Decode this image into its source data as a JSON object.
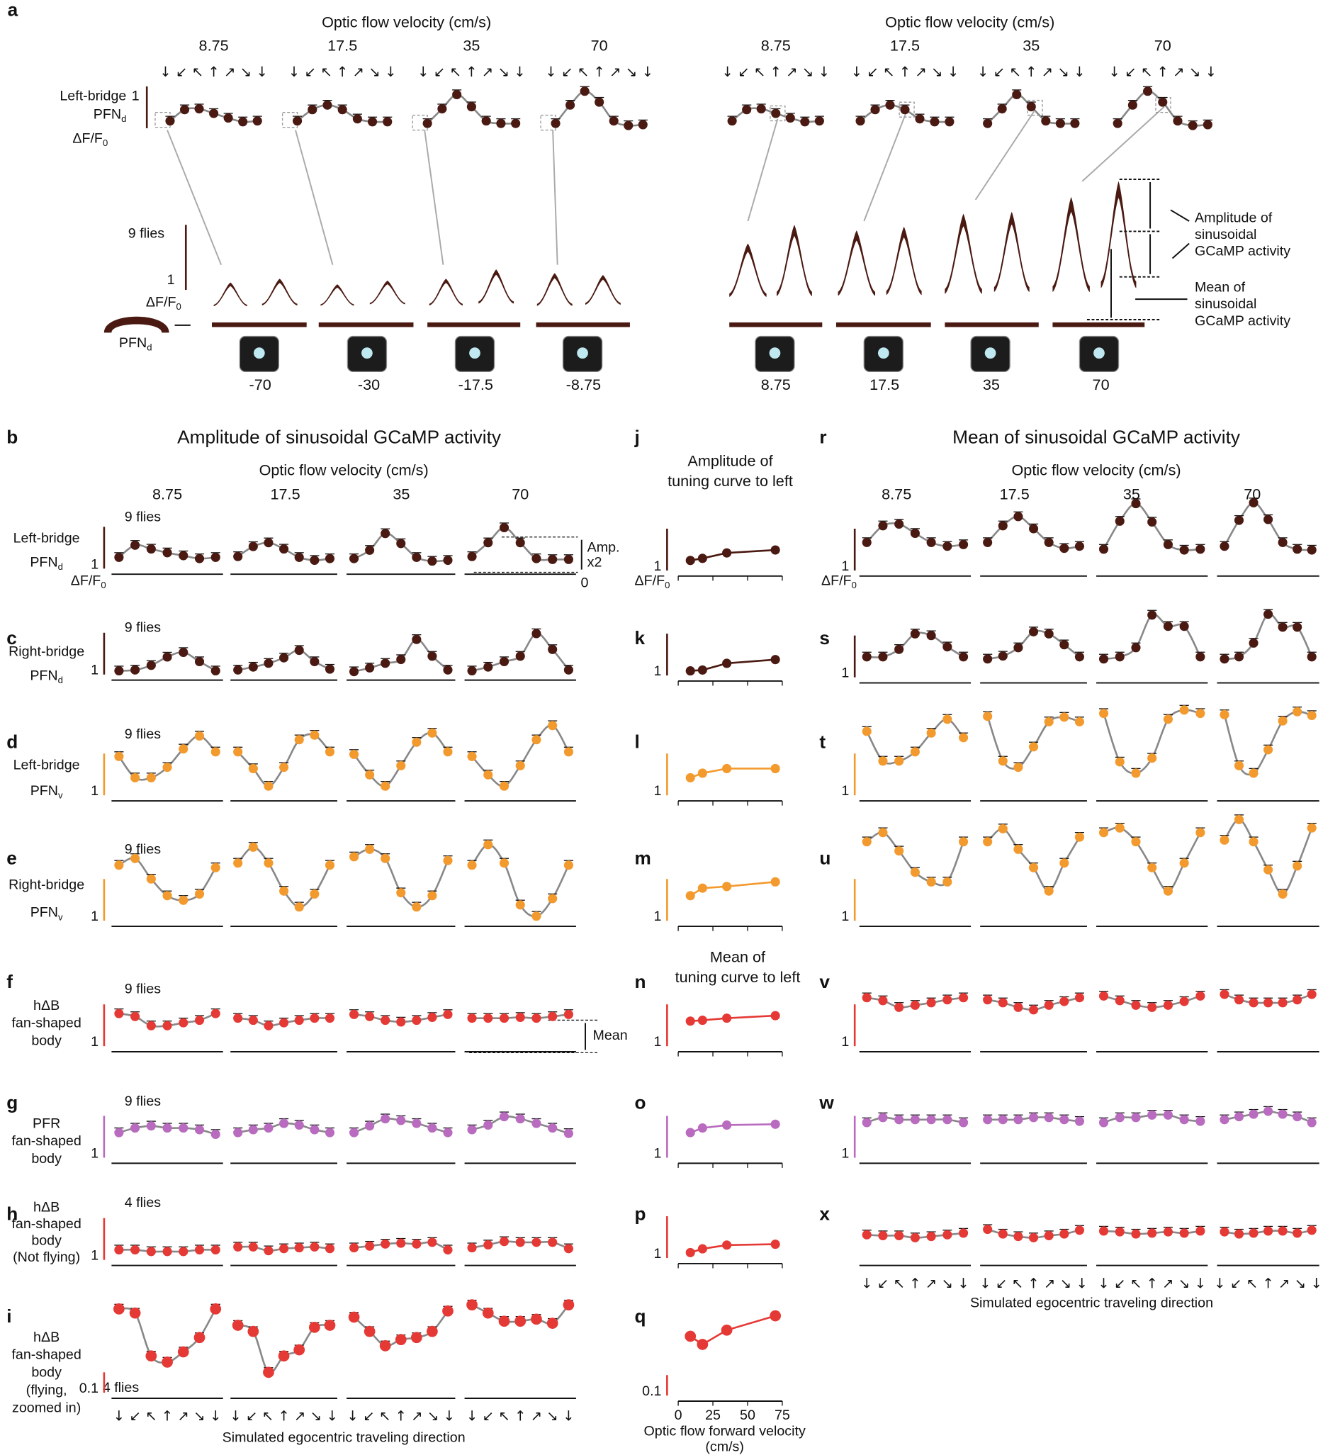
{
  "panel_a": {
    "label": "a",
    "axis_title": "Optic flow velocity (cm/s)",
    "velocities": [
      "8.75",
      "17.5",
      "35",
      "70"
    ],
    "arrows": "↓ ↙ ↖ ↑ ↗ ↘ ↓",
    "row_label": [
      {
        "text": "Left-bridge"
      },
      {
        "text": "PFN",
        "sub": "d",
        "colored": true
      }
    ],
    "scale": 1,
    "unit": {
      "text": "ΔF/F",
      "sub": "0"
    },
    "flies": "9 flies",
    "trace_scale": 1,
    "trace_unit": {
      "text": "ΔF/F",
      "sub": "0"
    },
    "cell": {
      "text": "PFN",
      "sub": "d"
    },
    "color": "#4a1a12",
    "curves": [
      [
        0.33,
        0.6,
        0.62,
        0.51,
        0.4,
        0.31,
        0.33
      ],
      [
        0.33,
        0.6,
        0.71,
        0.6,
        0.38,
        0.31,
        0.31
      ],
      [
        0.27,
        0.62,
        0.96,
        0.67,
        0.33,
        0.27,
        0.27
      ],
      [
        0.27,
        0.71,
        1.04,
        0.78,
        0.33,
        0.22,
        0.24
      ]
    ],
    "stimuli_left": [
      "-70",
      "-30",
      "-17.5",
      "-8.75"
    ],
    "stimuli_right": [
      "8.75",
      "17.5",
      "35",
      "70"
    ],
    "amplitude_note": [
      "Amplitude of",
      "sinusoidal",
      "GCaMP activity"
    ],
    "mean_note": [
      "Mean of",
      "sinusoidal",
      "GCaMP activity"
    ]
  },
  "left": {
    "title": "Amplitude of sinusoidal GCaMP activity",
    "axis_title": "Optic flow  velocity (cm/s)",
    "velocities": [
      "8.75",
      "17.5",
      "35",
      "70"
    ],
    "arrows": "↓ ↙ ↖ ↑ ↗ ↘ ↓",
    "xlabel": "Simulated egocentric traveling direction"
  },
  "right": {
    "title": "Mean of sinusoidal GCaMP activity",
    "axis_title": "Optic flow  velocity (cm/s)",
    "velocities": [
      "8.75",
      "17.5",
      "35",
      "70"
    ],
    "arrows": "↓ ↙ ↖ ↑ ↗ ↘ ↓",
    "xlabel": "Simulated egocentric traveling direction"
  },
  "middle": {
    "amp_title": [
      "Amplitude of",
      "tuning curve to left"
    ],
    "mean_title": [
      "Mean of",
      "tuning curve to left"
    ],
    "x": [
      8.75,
      17.5,
      35,
      70
    ],
    "xlim": [
      0,
      75
    ],
    "xticks": [
      0,
      25,
      50,
      75
    ],
    "xlabel": [
      "Optic flow forward velocity",
      "(cm/s)"
    ]
  },
  "unit": {
    "text": "ΔF/F",
    "sub": "0"
  },
  "annotations": {
    "amp": [
      "Amp.",
      "x2"
    ],
    "zero": "0",
    "mean": "Mean"
  },
  "rows": [
    {
      "letters": [
        "b",
        "j",
        "r"
      ],
      "label": [
        {
          "text": "Left-bridge"
        },
        {
          "text": "PFN",
          "sub": "d",
          "colored": true
        }
      ],
      "flies": "9 flies",
      "scale": 1,
      "color": "#4a1a12",
      "label_color": "#8b2a1a",
      "left": [
        [
          0.27,
          0.56,
          0.47,
          0.38,
          0.31,
          0.24,
          0.27
        ],
        [
          0.29,
          0.53,
          0.62,
          0.47,
          0.27,
          0.2,
          0.24
        ],
        [
          0.24,
          0.44,
          0.84,
          0.6,
          0.27,
          0.18,
          0.2
        ],
        [
          0.29,
          0.62,
          0.98,
          0.62,
          0.24,
          0.22,
          0.22
        ]
      ],
      "mid": [
        0.24,
        0.29,
        0.42,
        0.49
      ],
      "right": [
        [
          0.67,
          1.07,
          1.11,
          0.89,
          0.67,
          0.58,
          0.62
        ],
        [
          0.67,
          1.07,
          1.29,
          1,
          0.67,
          0.53,
          0.58
        ],
        [
          0.51,
          1.18,
          1.6,
          1.16,
          0.62,
          0.49,
          0.51
        ],
        [
          0.58,
          1.2,
          1.62,
          1.22,
          0.67,
          0.51,
          0.49
        ]
      ]
    },
    {
      "letters": [
        "c",
        "k",
        "s"
      ],
      "label": [
        {
          "text": "Right-bridge"
        },
        {
          "text": "PFN",
          "sub": "d",
          "colored": true
        }
      ],
      "flies": "9 flies",
      "scale": 1,
      "color": "#4a1a12",
      "label_color": "#8b2a1a",
      "left": [
        [
          0.09,
          0.11,
          0.22,
          0.42,
          0.53,
          0.31,
          0.09
        ],
        [
          0.11,
          0.18,
          0.27,
          0.4,
          0.58,
          0.31,
          0.13
        ],
        [
          0.07,
          0.16,
          0.27,
          0.36,
          0.84,
          0.44,
          0.11
        ],
        [
          0.09,
          0.18,
          0.31,
          0.44,
          0.98,
          0.6,
          0.11
        ]
      ],
      "mid": [
        0.11,
        0.13,
        0.29,
        0.38
      ],
      "right": [
        [
          0.49,
          0.49,
          0.67,
          1.04,
          1,
          0.73,
          0.49
        ],
        [
          0.44,
          0.51,
          0.71,
          1.09,
          1.04,
          0.78,
          0.49
        ],
        [
          0.44,
          0.49,
          0.71,
          1.49,
          1.22,
          1.22,
          0.49
        ],
        [
          0.44,
          0.49,
          0.82,
          1.51,
          1.2,
          1.2,
          0.49
        ]
      ]
    },
    {
      "letters": [
        "d",
        "l",
        "t"
      ],
      "label": [
        {
          "text": "Left-bridge"
        },
        {
          "text": "PFN",
          "sub": "v",
          "colored": true
        }
      ],
      "flies": "9 flies",
      "scale": 1,
      "color": "#f39a2e",
      "label_color": "#f39a2e",
      "left": [
        [
          0.93,
          0.42,
          0.42,
          0.67,
          1.11,
          1.42,
          1.04
        ],
        [
          1.04,
          0.64,
          0.22,
          0.67,
          1.33,
          1.44,
          1.04
        ],
        [
          0.98,
          0.49,
          0.22,
          0.71,
          1.27,
          1.49,
          1.04
        ],
        [
          0.93,
          0.49,
          0.22,
          0.71,
          1.33,
          1.67,
          1.04
        ]
      ],
      "mid": [
        0.42,
        0.53,
        0.64,
        0.64
      ],
      "right": [
        [
          1.53,
          0.82,
          0.82,
          1.04,
          1.49,
          1.82,
          1.38
        ],
        [
          1.89,
          0.82,
          0.67,
          1.16,
          1.76,
          1.87,
          1.76
        ],
        [
          1.96,
          0.8,
          0.53,
          0.89,
          1.82,
          2.04,
          1.96
        ],
        [
          1.93,
          0.71,
          0.53,
          1.09,
          1.78,
          2,
          1.91
        ]
      ]
    },
    {
      "letters": [
        "e",
        "m",
        "u"
      ],
      "label": [
        {
          "text": "Right-bridge"
        },
        {
          "text": "PFN",
          "sub": "v",
          "colored": true
        }
      ],
      "flies": "9 flies",
      "scale": 1,
      "color": "#f39a2e",
      "label_color": "#f39a2e",
      "left": [
        [
          1.33,
          1.49,
          1,
          0.6,
          0.49,
          0.64,
          1.27
        ],
        [
          1.38,
          1.76,
          1.38,
          0.71,
          0.33,
          0.64,
          1.33
        ],
        [
          1.53,
          1.71,
          1.49,
          0.67,
          0.33,
          0.6,
          1.44
        ],
        [
          1.33,
          1.82,
          1.38,
          0.38,
          0.11,
          0.53,
          1.33
        ]
      ],
      "mid": [
        0.6,
        0.78,
        0.82,
        0.93
      ],
      "right": [
        [
          1.89,
          2.11,
          1.67,
          1.16,
          0.93,
          0.93,
          1.89
        ],
        [
          1.89,
          2.2,
          1.71,
          1.27,
          0.71,
          1.38,
          2
        ],
        [
          2.11,
          2.22,
          1.89,
          1.27,
          0.71,
          1.38,
          2.11
        ],
        [
          1.93,
          2.42,
          1.89,
          1.22,
          0.64,
          1.31,
          2.22
        ]
      ]
    },
    {
      "letters": [
        "f",
        "n",
        "v"
      ],
      "label": [
        {
          "text": "hΔB",
          "colored": true
        },
        {
          "text": "fan-shaped"
        },
        {
          "text": "body"
        }
      ],
      "flies": "9 flies",
      "scale": 1,
      "color": "#e53935",
      "label_color": "#e53935",
      "left": [
        [
          0.78,
          0.71,
          0.49,
          0.49,
          0.56,
          0.62,
          0.78
        ],
        [
          0.67,
          0.62,
          0.49,
          0.56,
          0.62,
          0.67,
          0.67
        ],
        [
          0.76,
          0.71,
          0.62,
          0.58,
          0.62,
          0.69,
          0.76
        ],
        [
          0.67,
          0.67,
          0.67,
          0.69,
          0.67,
          0.71,
          0.76
        ]
      ],
      "mid": [
        0.6,
        0.62,
        0.67,
        0.73
      ],
      "right": [
        [
          1.16,
          1.09,
          0.93,
          0.98,
          1.04,
          1.11,
          1.16
        ],
        [
          1.11,
          1.04,
          0.93,
          0.87,
          0.98,
          1.07,
          1.16
        ],
        [
          1.2,
          1.09,
          0.98,
          0.93,
          0.98,
          1.07,
          1.2
        ],
        [
          1.24,
          1.11,
          1.04,
          1.04,
          1.04,
          1.11,
          1.24
        ]
      ]
    },
    {
      "letters": [
        "g",
        "o",
        "w"
      ],
      "label": [
        {
          "text": "PFR",
          "colored": true
        },
        {
          "text": "fan-shaped"
        },
        {
          "text": "body"
        }
      ],
      "flies": "9 flies",
      "scale": 1,
      "color": "#b86bbf",
      "label_color": "#c27ac8",
      "left": [
        [
          0.6,
          0.71,
          0.76,
          0.71,
          0.71,
          0.67,
          0.56
        ],
        [
          0.6,
          0.67,
          0.71,
          0.82,
          0.78,
          0.67,
          0.6
        ],
        [
          0.6,
          0.76,
          0.93,
          0.89,
          0.82,
          0.71,
          0.6
        ],
        [
          0.67,
          0.78,
          0.98,
          0.93,
          0.82,
          0.71,
          0.58
        ]
      ],
      "mid": [
        0.6,
        0.71,
        0.78,
        0.8
      ],
      "right": [
        [
          0.84,
          0.96,
          0.91,
          0.91,
          0.91,
          0.91,
          0.84
        ],
        [
          0.91,
          0.91,
          0.91,
          0.96,
          0.96,
          0.91,
          0.87
        ],
        [
          0.84,
          0.96,
          0.96,
          1.02,
          1.02,
          0.91,
          0.87
        ],
        [
          0.91,
          0.98,
          1.04,
          1.11,
          1.04,
          0.98,
          0.84
        ]
      ]
    },
    {
      "letters": [
        "h",
        "p",
        "x"
      ],
      "label": [
        {
          "text": "hΔB",
          "colored": true
        },
        {
          "text": "fan-shaped"
        },
        {
          "text": "body"
        },
        {
          "text": "(Not flying)"
        }
      ],
      "flies": "4 flies",
      "scale": 1,
      "color": "#e53935",
      "label_color": "#e53935",
      "left": [
        [
          0.24,
          0.24,
          0.2,
          0.2,
          0.2,
          0.24,
          0.24
        ],
        [
          0.31,
          0.31,
          0.22,
          0.27,
          0.29,
          0.31,
          0.27
        ],
        [
          0.29,
          0.33,
          0.38,
          0.4,
          0.38,
          0.42,
          0.24
        ],
        [
          0.29,
          0.36,
          0.44,
          0.42,
          0.42,
          0.42,
          0.27
        ]
      ],
      "mid": [
        0.13,
        0.22,
        0.31,
        0.33
      ],
      "right": [
        [
          0.6,
          0.58,
          0.58,
          0.53,
          0.56,
          0.6,
          0.64
        ],
        [
          0.73,
          0.62,
          0.56,
          0.53,
          0.58,
          0.62,
          0.71
        ],
        [
          0.69,
          0.67,
          0.62,
          0.64,
          0.67,
          0.64,
          0.69
        ],
        [
          0.67,
          0.62,
          0.64,
          0.69,
          0.69,
          0.64,
          0.71
        ]
      ]
    },
    {
      "letters": [
        "i",
        "q"
      ],
      "label": [
        {
          "text": "hΔB",
          "colored": true
        },
        {
          "text": "fan-shaped"
        },
        {
          "text": "body"
        },
        {
          "text": "(flying,"
        },
        {
          "text": "zoomed in)"
        }
      ],
      "flies": "4 flies",
      "scale": 0.1,
      "color": "#e53935",
      "label_color": "#e53935",
      "left": [
        [
          0.41,
          0.39,
          0.18,
          0.15,
          0.2,
          0.27,
          0.41
        ],
        [
          0.33,
          0.3,
          0.1,
          0.18,
          0.21,
          0.32,
          0.33
        ],
        [
          0.37,
          0.3,
          0.23,
          0.26,
          0.27,
          0.3,
          0.4
        ],
        [
          0.43,
          0.39,
          0.35,
          0.35,
          0.36,
          0.34,
          0.43
        ]
      ],
      "mid": [
        0.29,
        0.25,
        0.32,
        0.39
      ]
    }
  ]
}
